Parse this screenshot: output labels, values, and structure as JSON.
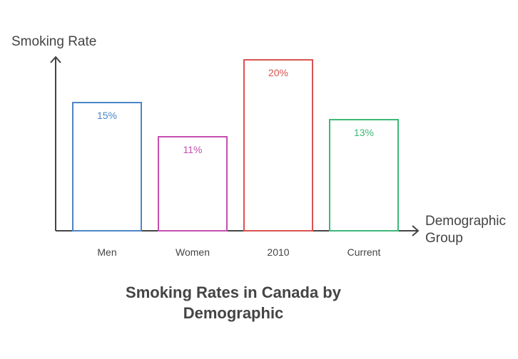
{
  "chart_data": {
    "type": "bar",
    "title": "Smoking Rates in Canada by\nDemographic",
    "xlabel": "Demographic\nGroup",
    "ylabel": "Smoking Rate",
    "categories": [
      "Men",
      "Women",
      "2010",
      "Current"
    ],
    "values": [
      15,
      11,
      20,
      13
    ],
    "value_labels": [
      "15%",
      "11%",
      "20%",
      "13%"
    ],
    "colors": [
      "#4a86c8",
      "#c44fb0",
      "#d9534f",
      "#3cb878"
    ],
    "ylim": [
      0,
      20
    ],
    "grid": false,
    "legend": "none"
  }
}
